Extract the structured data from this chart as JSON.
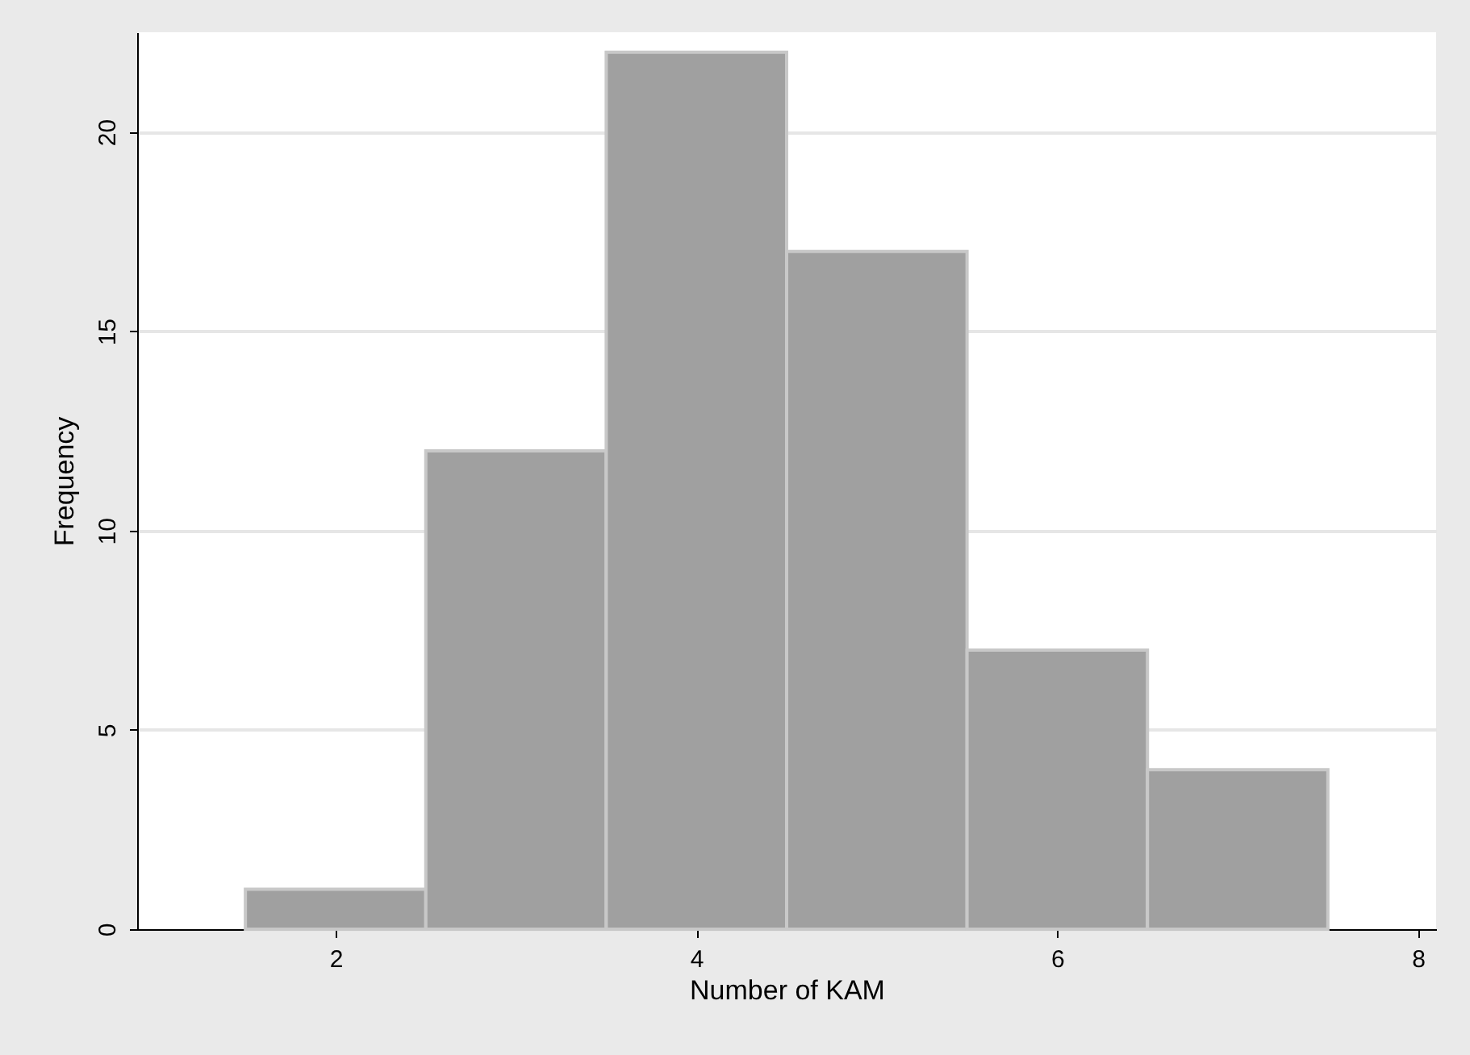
{
  "chart_data": {
    "type": "histogram",
    "xlabel": "Number of KAM",
    "ylabel": "Frequency",
    "bins": [
      1.5,
      2.5,
      3.5,
      4.5,
      5.5,
      6.5,
      7.5
    ],
    "values": [
      1,
      12,
      22,
      17,
      7,
      4
    ],
    "color": "#a0a0a0",
    "xlim": [
      0.9,
      8.1
    ],
    "xticks": [
      2,
      4,
      6,
      8
    ],
    "ylim": [
      0,
      22.5
    ],
    "yticks": [
      0,
      5,
      10,
      15,
      20
    ],
    "grid": "y"
  }
}
